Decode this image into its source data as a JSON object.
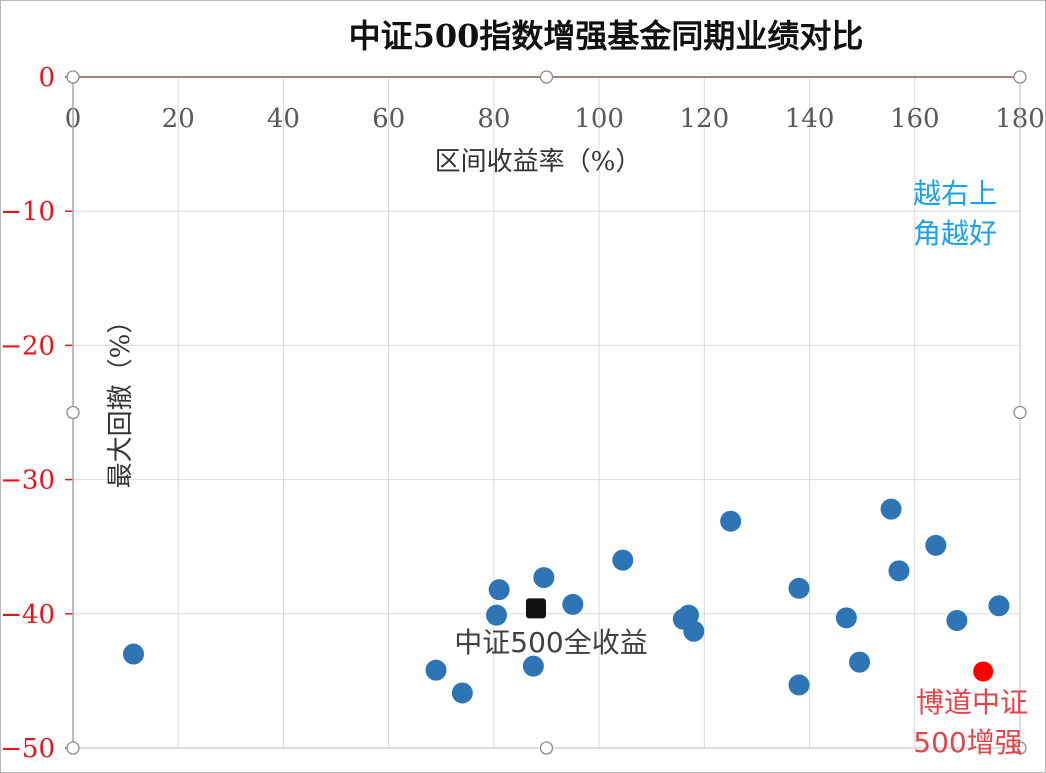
{
  "chart_data": {
    "type": "scatter",
    "title": "中证500指数增强基金同期业绩对比",
    "xlabel": "区间收益率（%）",
    "ylabel": "最大回撤（%）",
    "xlim": [
      0,
      180
    ],
    "ylim": [
      -50,
      0
    ],
    "x_ticks": [
      0,
      20,
      40,
      60,
      80,
      100,
      120,
      140,
      160,
      180
    ],
    "y_ticks": [
      0,
      -10,
      -20,
      -30,
      -40,
      -50
    ],
    "grid": true,
    "colors": {
      "funds": "#2E75B6",
      "benchmark": "#111111",
      "highlight": "#FF0000",
      "y_tick_labels": "#E8131B",
      "note": "#1AA3E8",
      "highlight_label": "#E0474C"
    },
    "series": [
      {
        "role": "funds",
        "marker": "circle",
        "points": [
          [
            11.5,
            -43.0
          ],
          [
            69.0,
            -44.2
          ],
          [
            74.0,
            -45.9
          ],
          [
            80.5,
            -40.1
          ],
          [
            81.0,
            -38.2
          ],
          [
            87.5,
            -43.9
          ],
          [
            89.5,
            -37.3
          ],
          [
            95.0,
            -39.3
          ],
          [
            104.5,
            -36.0
          ],
          [
            116.0,
            -40.4
          ],
          [
            117.0,
            -40.1
          ],
          [
            118.0,
            -41.3
          ],
          [
            125.0,
            -33.1
          ],
          [
            138.0,
            -38.1
          ],
          [
            138.0,
            -45.3
          ],
          [
            147.0,
            -40.3
          ],
          [
            149.5,
            -43.6
          ],
          [
            155.5,
            -32.2
          ],
          [
            157.0,
            -36.8
          ],
          [
            164.0,
            -34.9
          ],
          [
            168.0,
            -40.5
          ],
          [
            176.0,
            -39.4
          ]
        ]
      },
      {
        "name": "中证500全收益",
        "role": "benchmark",
        "marker": "square",
        "points": [
          [
            88.0,
            -39.6
          ]
        ]
      },
      {
        "name": "博道中证500增强",
        "role": "highlight",
        "marker": "circle",
        "points": [
          [
            173.0,
            -44.3
          ]
        ]
      }
    ],
    "annotations": {
      "corner_note": [
        "越右上",
        "角越好"
      ],
      "benchmark_label": "中证500全收益",
      "highlight_label": [
        "博道中证",
        "500增强"
      ]
    }
  }
}
